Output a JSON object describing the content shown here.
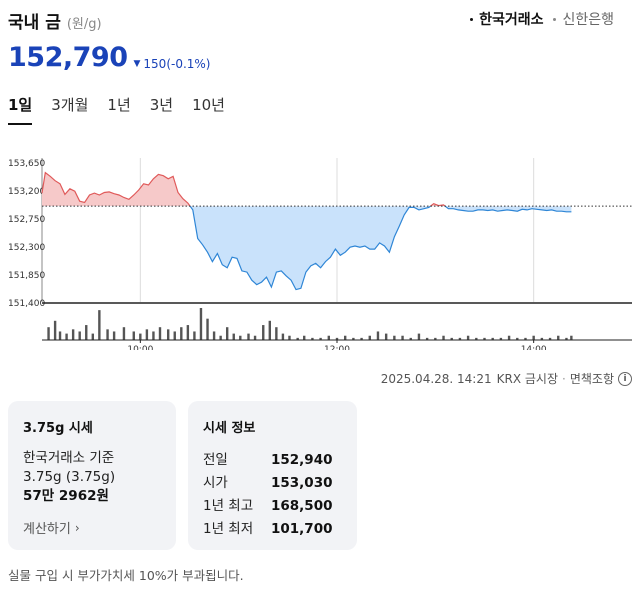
{
  "header": {
    "title": "국내 금",
    "unit": "(원/g)",
    "sources": [
      {
        "label": "한국거래소",
        "active": true
      },
      {
        "label": "신한은행",
        "active": false
      }
    ]
  },
  "price": {
    "current": "152,790",
    "change_arrow": "▼",
    "change": "150",
    "change_pct": "(-0.1%)",
    "direction": "down"
  },
  "tabs": [
    {
      "label": "1일",
      "active": true
    },
    {
      "label": "3개월",
      "active": false
    },
    {
      "label": "1년",
      "active": false
    },
    {
      "label": "3년",
      "active": false
    },
    {
      "label": "10년",
      "active": false
    }
  ],
  "chart_data": {
    "type": "area",
    "baseline": 152940,
    "baseline_style": "dotted",
    "y_ticks": [
      153650,
      153200,
      152750,
      152300,
      151850,
      151400
    ],
    "y_tick_labels": [
      "153,650",
      "153,200",
      "152,750",
      "152,300",
      "151,850",
      "151,400"
    ],
    "ylim": [
      151400,
      153650
    ],
    "x_ticks": [
      600,
      720,
      840
    ],
    "x_tick_labels": [
      "10:00",
      "12:00",
      "14:00"
    ],
    "xlim": [
      540,
      900
    ],
    "x_unit": "minutes since midnight",
    "colors": {
      "up_line": "#e05a5a",
      "up_fill": "#f6c9c9",
      "down_line": "#2f86d6",
      "down_fill": "#c9e2fb",
      "volume": "#555555"
    },
    "series": [
      {
        "x": [
          540,
          542,
          545,
          548,
          551,
          554,
          557,
          560,
          563,
          566,
          569,
          572,
          575,
          578,
          581,
          584,
          587,
          590,
          593,
          596,
          599,
          602,
          605,
          608,
          611,
          614,
          617,
          620,
          623,
          626,
          629,
          632,
          635,
          638,
          641,
          644,
          647,
          650,
          653,
          656,
          659,
          662,
          665,
          668,
          671,
          674,
          677,
          680,
          683,
          686,
          689,
          692,
          695,
          698,
          701,
          704,
          707,
          710,
          713,
          716,
          719,
          722,
          725,
          728,
          731,
          734,
          737,
          740,
          743,
          746,
          749,
          752,
          755,
          758,
          761,
          764,
          767,
          770,
          773,
          776,
          779,
          782,
          785,
          788,
          791,
          794,
          797,
          800,
          803,
          806,
          809,
          812,
          815,
          818,
          821,
          824,
          827,
          830,
          833,
          836,
          839,
          842,
          845,
          848,
          851,
          854,
          857,
          860,
          863
        ],
        "values": [
          153150,
          153480,
          153420,
          153350,
          153300,
          153130,
          153220,
          153180,
          153020,
          153000,
          153120,
          153150,
          153120,
          153160,
          153170,
          153140,
          153120,
          153080,
          153050,
          153120,
          153200,
          153300,
          153280,
          153380,
          153450,
          153430,
          153380,
          153420,
          153160,
          153060,
          152990,
          152880,
          152420,
          152320,
          152200,
          152050,
          152180,
          152000,
          151950,
          152120,
          152100,
          151900,
          151880,
          151750,
          151680,
          151720,
          151800,
          151640,
          151880,
          151900,
          151820,
          151750,
          151600,
          151620,
          151880,
          151980,
          152020,
          151950,
          152050,
          152120,
          152250,
          152150,
          152200,
          152280,
          152300,
          152280,
          152300,
          152250,
          152250,
          152350,
          152300,
          152200,
          152450,
          152620,
          152800,
          152920,
          152920,
          152880,
          152900,
          152920,
          152980,
          152950,
          152960,
          152900,
          152900,
          152880,
          152870,
          152860,
          152860,
          152880,
          152880,
          152870,
          152880,
          152860,
          152870,
          152880,
          152870,
          152860,
          152890,
          152880,
          152900,
          152890,
          152880,
          152870,
          152880,
          152860,
          152860,
          152850,
          152850
        ]
      }
    ],
    "volume": {
      "x": [
        544,
        548,
        551,
        555,
        559,
        563,
        567,
        571,
        575,
        580,
        584,
        590,
        596,
        600,
        604,
        608,
        612,
        617,
        621,
        625,
        629,
        633,
        637,
        641,
        645,
        649,
        653,
        657,
        661,
        666,
        670,
        675,
        679,
        683,
        687,
        691,
        696,
        700,
        705,
        710,
        715,
        720,
        725,
        730,
        735,
        740,
        745,
        750,
        755,
        760,
        765,
        770,
        775,
        780,
        785,
        790,
        795,
        800,
        805,
        810,
        815,
        820,
        825,
        830,
        835,
        840,
        845,
        850,
        855,
        860,
        863
      ],
      "values": [
        6,
        9,
        4,
        3,
        5,
        4,
        7,
        3,
        14,
        5,
        4,
        6,
        4,
        3,
        5,
        4,
        6,
        5,
        4,
        6,
        7,
        4,
        15,
        10,
        4,
        2,
        6,
        3,
        2,
        3,
        2,
        7,
        9,
        6,
        3,
        2,
        1,
        2,
        1,
        1,
        2,
        1,
        2,
        1,
        1,
        2,
        4,
        3,
        2,
        2,
        1,
        3,
        1,
        1,
        2,
        1,
        1,
        2,
        1,
        1,
        1,
        1,
        2,
        1,
        1,
        2,
        1,
        1,
        2,
        1,
        2
      ]
    }
  },
  "timestamp": {
    "datetime": "2025.04.28. 14:21",
    "market": "KRX 금시장",
    "sep": "·",
    "tax": "면책조항",
    "info_icon": "i"
  },
  "card_left": {
    "title": "3.75g 시세",
    "basis": "한국거래소 기준",
    "weight": "3.75g (3.75g)",
    "price": "57만 2962원",
    "link": "계산하기",
    "link_chevron": "›"
  },
  "card_right": {
    "title": "시세 정보",
    "rows": [
      {
        "label": "전일",
        "value": "152,940"
      },
      {
        "label": "시가",
        "value": "153,030"
      },
      {
        "label": "1년 최고",
        "value": "168,500"
      },
      {
        "label": "1년 최저",
        "value": "101,700"
      }
    ]
  },
  "footnote": "실물 구입 시 부가가치세 10%가 부과됩니다."
}
